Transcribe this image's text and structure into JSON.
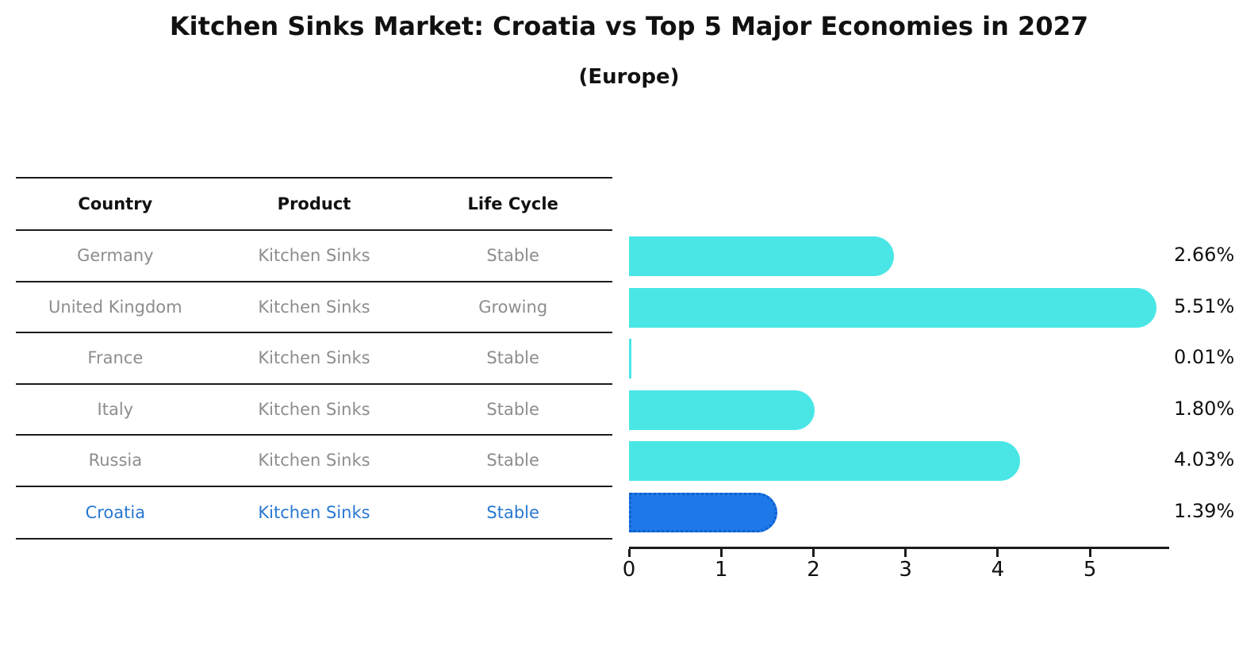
{
  "chart_data": {
    "type": "bar",
    "orientation": "horizontal",
    "title": "Kitchen Sinks Market: Croatia vs Top 5 Major Economies in 2027",
    "subtitle": "(Europe)",
    "categories": [
      "Germany",
      "United Kingdom",
      "France",
      "Italy",
      "Russia",
      "Croatia"
    ],
    "values": [
      2.66,
      5.51,
      0.01,
      1.8,
      4.03,
      1.39
    ],
    "value_labels": [
      "2.66%",
      "5.51%",
      "0.01%",
      "1.80%",
      "4.03%",
      "1.39%"
    ],
    "highlight_category": "Croatia",
    "xlim": [
      0,
      5.85
    ],
    "xticks": [
      0,
      1,
      2,
      3,
      4,
      5
    ],
    "grid": false,
    "legend": "none",
    "xlabel": "",
    "ylabel": ""
  },
  "table": {
    "headers": [
      "Country",
      "Product",
      "Life Cycle"
    ],
    "rows": [
      {
        "country": "Germany",
        "product": "Kitchen Sinks",
        "life_cycle": "Stable"
      },
      {
        "country": "United Kingdom",
        "product": "Kitchen Sinks",
        "life_cycle": "Growing"
      },
      {
        "country": "France",
        "product": "Kitchen Sinks",
        "life_cycle": "Stable"
      },
      {
        "country": "Italy",
        "product": "Kitchen Sinks",
        "life_cycle": "Stable"
      },
      {
        "country": "Russia",
        "product": "Kitchen Sinks",
        "life_cycle": "Stable"
      },
      {
        "country": "Croatia",
        "product": "Kitchen Sinks",
        "life_cycle": "Stable"
      }
    ]
  },
  "colors": {
    "bar": "#4AE6E6",
    "highlight_bar": "#1F78E8",
    "highlight_border": "#0E5FCE",
    "highlight_text": "#2878D2",
    "cell_text": "#8D8D8D",
    "line": "#1C1C1C"
  }
}
